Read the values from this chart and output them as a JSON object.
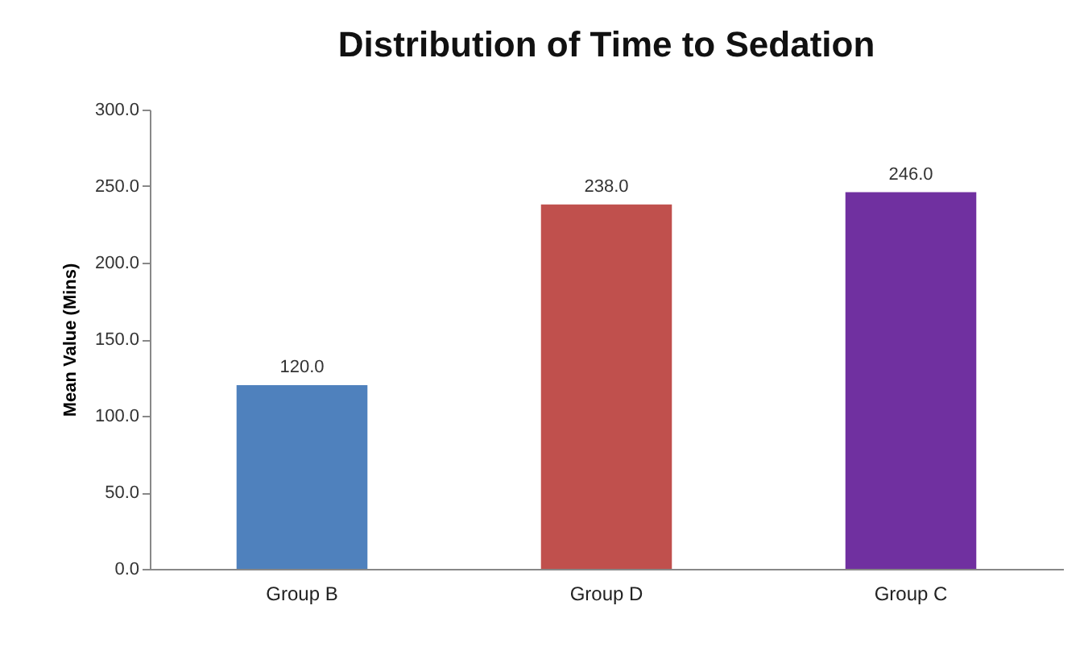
{
  "chart_data": {
    "type": "bar",
    "title": "Distribution of Time to Sedation",
    "ylabel": "Mean Value (Mins)",
    "categories": [
      "Group B",
      "Group D",
      "Group C"
    ],
    "values": [
      120.0,
      238.0,
      246.0
    ],
    "colors": [
      "#4f81bd",
      "#c0504d",
      "#7030a0"
    ],
    "value_labels": [
      "120.0",
      "238.0",
      "246.0"
    ],
    "ylim": [
      0,
      300
    ],
    "yticks": [
      {
        "value": 0,
        "label": "0.0"
      },
      {
        "value": 50,
        "label": "50.0"
      },
      {
        "value": 100,
        "label": "100.0"
      },
      {
        "value": 150,
        "label": "150.0"
      },
      {
        "value": 200,
        "label": "200.0"
      },
      {
        "value": 250,
        "label": "250.0"
      },
      {
        "value": 300,
        "label": "300.0"
      }
    ],
    "grid": false
  }
}
